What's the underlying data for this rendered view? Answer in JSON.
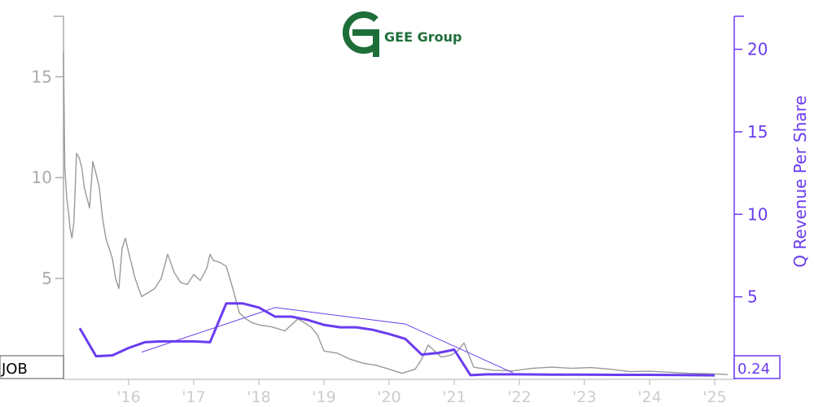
{
  "logo": {
    "text": "GEE Group"
  },
  "ticker": "JOB",
  "latest_value_label": "0.24",
  "colors": {
    "price": "#999999",
    "revenue": "#6a3cf0",
    "left_axis": "#aaaaaa",
    "right_axis": "#6a3cf0",
    "logo_green": "#1e6e3a"
  },
  "chart_data": {
    "type": "line",
    "title": "",
    "xlabel": "",
    "y_left_label": "",
    "y_right_label": "Q Revenue Per Share",
    "x_ticks": [
      "'16",
      "'17",
      "'18",
      "'19",
      "'20",
      "'21",
      "'22",
      "'23",
      "'24",
      "'25"
    ],
    "y_left_ticks": [
      5,
      10,
      15
    ],
    "y_right_ticks": [
      5,
      10,
      15,
      20
    ],
    "y_left_lim": [
      0,
      18
    ],
    "y_right_lim": [
      0,
      22
    ],
    "x_range": [
      2015.0,
      2025.3
    ],
    "series": [
      {
        "role": "price",
        "axis": "left",
        "x": [
          2015.0,
          2015.02,
          2015.05,
          2015.08,
          2015.1,
          2015.13,
          2015.16,
          2015.2,
          2015.24,
          2015.28,
          2015.32,
          2015.36,
          2015.4,
          2015.45,
          2015.5,
          2015.55,
          2015.6,
          2015.65,
          2015.7,
          2015.75,
          2015.8,
          2015.85,
          2015.9,
          2015.95,
          2016.0,
          2016.1,
          2016.2,
          2016.3,
          2016.4,
          2016.5,
          2016.6,
          2016.7,
          2016.8,
          2016.9,
          2017.0,
          2017.1,
          2017.2,
          2017.25,
          2017.3,
          2017.4,
          2017.5,
          2017.6,
          2017.7,
          2017.8,
          2017.9,
          2018.0,
          2018.2,
          2018.4,
          2018.6,
          2018.8,
          2018.9,
          2019.0,
          2019.2,
          2019.4,
          2019.6,
          2019.8,
          2020.0,
          2020.2,
          2020.4,
          2020.5,
          2020.6,
          2020.8,
          2020.95,
          2021.05,
          2021.15,
          2021.3,
          2021.6,
          2021.9,
          2022.2,
          2022.5,
          2022.8,
          2023.1,
          2023.4,
          2023.7,
          2024.0,
          2024.3,
          2024.6,
          2024.9,
          2025.2
        ],
        "values": [
          16.2,
          10.5,
          9.0,
          8.2,
          7.5,
          7.0,
          7.8,
          11.2,
          11.0,
          10.5,
          9.5,
          9.0,
          8.5,
          10.8,
          10.2,
          9.5,
          8.0,
          7.0,
          6.5,
          6.0,
          5.0,
          4.5,
          6.5,
          7.0,
          6.3,
          5.0,
          4.1,
          4.3,
          4.5,
          5.0,
          6.2,
          5.3,
          4.8,
          4.7,
          5.2,
          4.9,
          5.5,
          6.2,
          5.9,
          5.8,
          5.6,
          4.5,
          3.3,
          3.0,
          2.8,
          2.7,
          2.6,
          2.4,
          3.0,
          2.6,
          2.2,
          1.4,
          1.3,
          1.0,
          0.8,
          0.7,
          0.5,
          0.3,
          0.5,
          1.0,
          1.7,
          1.1,
          1.2,
          1.4,
          1.8,
          0.6,
          0.45,
          0.42,
          0.55,
          0.6,
          0.55,
          0.58,
          0.5,
          0.38,
          0.4,
          0.35,
          0.3,
          0.28,
          0.24
        ]
      },
      {
        "role": "revenue",
        "axis": "right",
        "x": [
          2015.25,
          2015.5,
          2015.75,
          2016.0,
          2016.25,
          2016.5,
          2016.75,
          2017.0,
          2017.25,
          2017.5,
          2017.75,
          2018.0,
          2018.25,
          2018.5,
          2018.75,
          2019.0,
          2019.25,
          2019.5,
          2019.75,
          2020.0,
          2020.25,
          2020.5,
          2020.75,
          2021.0,
          2021.25,
          2021.5,
          2021.75,
          2022.0,
          2022.5,
          2023.0,
          2023.5,
          2024.0,
          2024.5,
          2025.0
        ],
        "values": [
          3.1,
          1.4,
          1.45,
          1.9,
          2.25,
          2.3,
          2.3,
          2.3,
          2.25,
          4.6,
          4.6,
          4.35,
          3.8,
          3.8,
          3.6,
          3.3,
          3.15,
          3.15,
          3.0,
          2.75,
          2.45,
          1.5,
          1.6,
          1.8,
          0.25,
          0.3,
          0.3,
          0.3,
          0.28,
          0.28,
          0.27,
          0.27,
          0.26,
          0.24
        ]
      },
      {
        "role": "revenue-trend",
        "axis": "right",
        "x": [
          2016.2,
          2018.25,
          2020.25,
          2021.9
        ],
        "values": [
          1.65,
          4.35,
          3.35,
          0.4
        ]
      }
    ]
  }
}
